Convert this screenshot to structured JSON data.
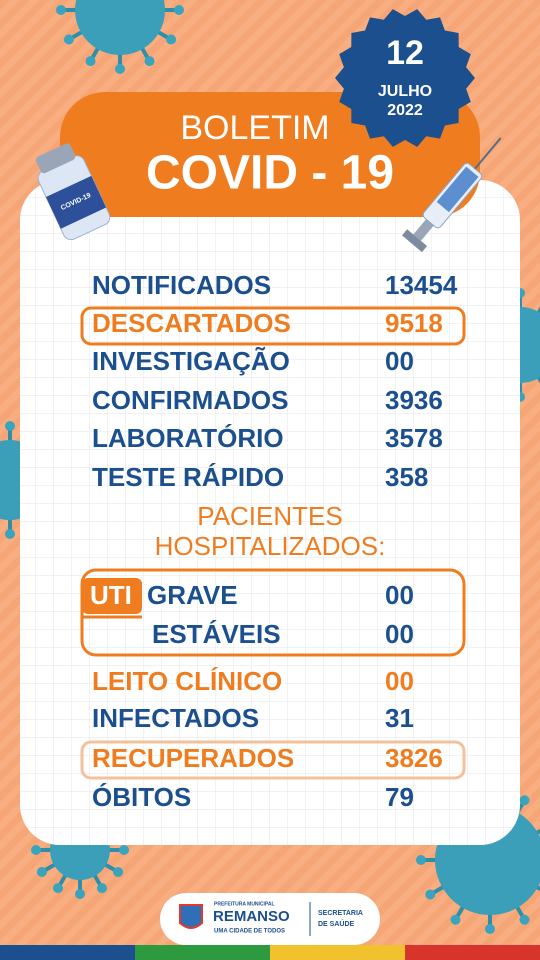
{
  "header": {
    "title": "BOLETIM",
    "subtitle": "COVID - 19"
  },
  "date": {
    "day": "12",
    "month": "JULHO",
    "year": "2022"
  },
  "vial_label": "COVID-19",
  "rows": [
    {
      "label": "NOTIFICADOS",
      "value": "13454"
    },
    {
      "label": "DESCARTADOS",
      "value": "9518"
    },
    {
      "label": "INVESTIGAÇÃO",
      "value": "00"
    },
    {
      "label": "CONFIRMADOS",
      "value": "3936"
    },
    {
      "label": "LABORATÓRIO",
      "value": "3578"
    },
    {
      "label": "TESTE RÁPIDO",
      "value": "358"
    }
  ],
  "section": {
    "line1": "PACIENTES",
    "line2": "HOSPITALIZADOS:"
  },
  "uti": {
    "label": "UTI",
    "rows": [
      {
        "label": "GRAVE",
        "value": "00"
      },
      {
        "label": "ESTÁVEIS",
        "value": "00"
      }
    ]
  },
  "rows2": [
    {
      "label": "LEITO CLÍNICO",
      "value": "00"
    },
    {
      "label": "INFECTADOS",
      "value": "31"
    },
    {
      "label": "RECUPERADOS",
      "value": "3826"
    },
    {
      "label": "ÓBITOS",
      "value": "79"
    }
  ],
  "footer": {
    "org": "PREFEITURA MUNICIPAL",
    "city": "REMANSO",
    "slogan": "UMA CIDADE DE TODOS",
    "dept_line1": "SECRETARIA",
    "dept_line2": "DE SAÚDE"
  }
}
